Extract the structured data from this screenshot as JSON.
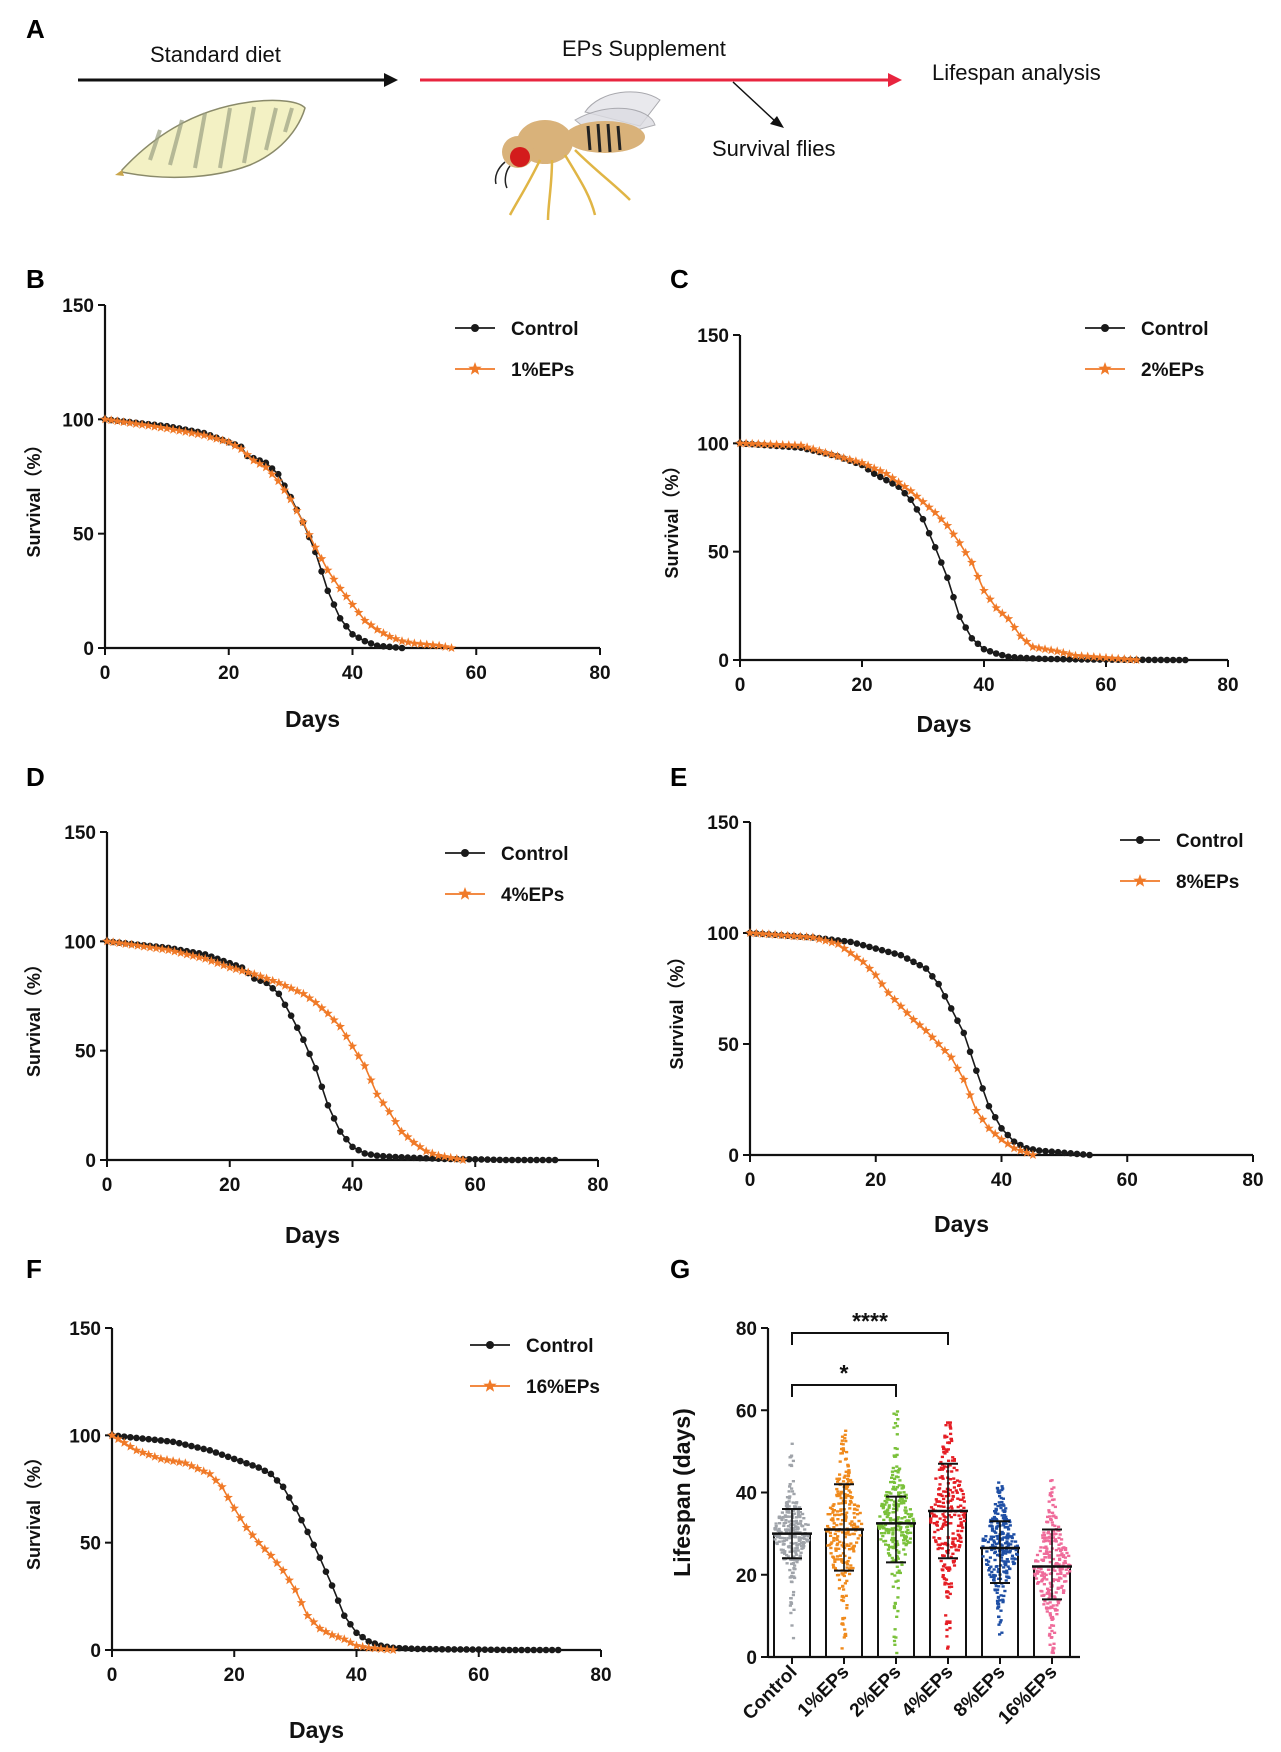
{
  "panel_letters": {
    "A": "A",
    "B": "B",
    "C": "C",
    "D": "D",
    "E": "E",
    "F": "F",
    "G": "G"
  },
  "schematic": {
    "standard_diet": "Standard diet",
    "eps_supplement": "EPs Supplement",
    "lifespan_analysis": "Lifespan analysis",
    "survival_flies": "Survival flies",
    "colors": {
      "diet_arrow": "#111111",
      "eps_arrow": "#e8253f",
      "larva": "#f3f1c4",
      "larva_stripes": "#9aa083",
      "fly_body": "#d9b27a",
      "fly_eye": "#d31c1c",
      "fly_legs": "#e0b545"
    }
  },
  "colors": {
    "control": "#1a1a1a",
    "treatment": "#f07a28"
  },
  "chart_data": [
    {
      "id": "B",
      "type": "line",
      "xlabel": "Days",
      "ylabel": "Survival（%）",
      "xlim": [
        0,
        80
      ],
      "ylim": [
        0,
        150
      ],
      "xticks": [
        "0",
        "20",
        "40",
        "60",
        "80"
      ],
      "yticks": [
        "0",
        "50",
        "100",
        "150"
      ],
      "legend_position": "top-right",
      "series": [
        {
          "name": "Control",
          "marker": "circle",
          "points": [
            [
              0,
              100
            ],
            [
              10,
              97
            ],
            [
              16,
              94
            ],
            [
              20,
              90
            ],
            [
              22,
              88
            ],
            [
              23,
              84
            ],
            [
              26,
              81
            ],
            [
              28,
              76
            ],
            [
              30,
              66
            ],
            [
              32,
              55
            ],
            [
              34,
              42
            ],
            [
              36,
              25
            ],
            [
              38,
              13
            ],
            [
              40,
              6
            ],
            [
              42,
              3
            ],
            [
              44,
              1
            ],
            [
              46,
              0.5
            ],
            [
              48,
              0
            ]
          ]
        },
        {
          "name": "1%EPs",
          "marker": "star",
          "points": [
            [
              0,
              100
            ],
            [
              10,
              96
            ],
            [
              16,
              93
            ],
            [
              20,
              90
            ],
            [
              22,
              87
            ],
            [
              24,
              82
            ],
            [
              26,
              79
            ],
            [
              28,
              73
            ],
            [
              30,
              65
            ],
            [
              32,
              55
            ],
            [
              34,
              44
            ],
            [
              36,
              34
            ],
            [
              38,
              26
            ],
            [
              40,
              19
            ],
            [
              42,
              12
            ],
            [
              44,
              8
            ],
            [
              46,
              5
            ],
            [
              48,
              3
            ],
            [
              50,
              2
            ],
            [
              52,
              1.5
            ],
            [
              54,
              1
            ],
            [
              56,
              0
            ]
          ]
        }
      ]
    },
    {
      "id": "C",
      "type": "line",
      "xlabel": "Days",
      "ylabel": "Survival（%）",
      "xlim": [
        0,
        80
      ],
      "ylim": [
        0,
        150
      ],
      "xticks": [
        "0",
        "20",
        "40",
        "60",
        "80"
      ],
      "yticks": [
        "0",
        "50",
        "100",
        "150"
      ],
      "legend_position": "top-right",
      "series": [
        {
          "name": "Control",
          "marker": "circle",
          "points": [
            [
              0,
              100
            ],
            [
              10,
              98
            ],
            [
              16,
              94
            ],
            [
              20,
              90
            ],
            [
              22,
              86
            ],
            [
              26,
              80
            ],
            [
              28,
              74
            ],
            [
              30,
              65
            ],
            [
              32,
              52
            ],
            [
              34,
              38
            ],
            [
              36,
              20
            ],
            [
              38,
              10
            ],
            [
              40,
              5
            ],
            [
              42,
              3
            ],
            [
              44,
              1.5
            ],
            [
              46,
              1
            ],
            [
              50,
              0.5
            ],
            [
              55,
              0.3
            ],
            [
              60,
              0.2
            ],
            [
              65,
              0.1
            ],
            [
              70,
              0
            ],
            [
              73,
              0
            ]
          ]
        },
        {
          "name": "2%EPs",
          "marker": "star",
          "points": [
            [
              0,
              100
            ],
            [
              10,
              99
            ],
            [
              16,
              94
            ],
            [
              20,
              91
            ],
            [
              24,
              86
            ],
            [
              28,
              78
            ],
            [
              30,
              73
            ],
            [
              32,
              68
            ],
            [
              34,
              62
            ],
            [
              36,
              54
            ],
            [
              38,
              45
            ],
            [
              40,
              32
            ],
            [
              42,
              24
            ],
            [
              44,
              19
            ],
            [
              46,
              11
            ],
            [
              48,
              6
            ],
            [
              50,
              5
            ],
            [
              52,
              4
            ],
            [
              55,
              2
            ],
            [
              60,
              1
            ],
            [
              65,
              0
            ]
          ]
        }
      ]
    },
    {
      "id": "D",
      "type": "line",
      "xlabel": "Days",
      "ylabel": "Survival（%）",
      "xlim": [
        0,
        80
      ],
      "ylim": [
        0,
        150
      ],
      "xticks": [
        "0",
        "20",
        "40",
        "60",
        "80"
      ],
      "yticks": [
        "0",
        "50",
        "100",
        "150"
      ],
      "legend_position": "top-right",
      "series": [
        {
          "name": "Control",
          "marker": "circle",
          "points": [
            [
              0,
              100
            ],
            [
              10,
              97
            ],
            [
              16,
              94
            ],
            [
              20,
              90
            ],
            [
              22,
              88
            ],
            [
              24,
              83
            ],
            [
              26,
              81
            ],
            [
              28,
              76
            ],
            [
              30,
              66
            ],
            [
              32,
              55
            ],
            [
              34,
              42
            ],
            [
              36,
              25
            ],
            [
              38,
              13
            ],
            [
              40,
              6
            ],
            [
              42,
              3
            ],
            [
              44,
              2
            ],
            [
              46,
              1.5
            ],
            [
              50,
              1
            ],
            [
              55,
              0.5
            ],
            [
              60,
              0.3
            ],
            [
              65,
              0
            ],
            [
              73,
              0
            ]
          ]
        },
        {
          "name": "4%EPs",
          "marker": "star",
          "points": [
            [
              0,
              100
            ],
            [
              10,
              96
            ],
            [
              16,
              92
            ],
            [
              20,
              88
            ],
            [
              24,
              85
            ],
            [
              28,
              81
            ],
            [
              32,
              76
            ],
            [
              34,
              72
            ],
            [
              36,
              67
            ],
            [
              38,
              61
            ],
            [
              40,
              52
            ],
            [
              42,
              43
            ],
            [
              44,
              30
            ],
            [
              46,
              22
            ],
            [
              48,
              13
            ],
            [
              50,
              8
            ],
            [
              52,
              4
            ],
            [
              54,
              2
            ],
            [
              56,
              1
            ],
            [
              58,
              0
            ]
          ]
        }
      ]
    },
    {
      "id": "E",
      "type": "line",
      "xlabel": "Days",
      "ylabel": "Survival（%）",
      "xlim": [
        0,
        80
      ],
      "ylim": [
        0,
        150
      ],
      "xticks": [
        "0",
        "20",
        "40",
        "60",
        "80"
      ],
      "yticks": [
        "0",
        "50",
        "100",
        "150"
      ],
      "legend_position": "top-right",
      "series": [
        {
          "name": "Control",
          "marker": "circle",
          "points": [
            [
              0,
              100
            ],
            [
              10,
              98
            ],
            [
              16,
              96
            ],
            [
              20,
              93
            ],
            [
              24,
              90
            ],
            [
              28,
              84
            ],
            [
              30,
              77
            ],
            [
              32,
              66
            ],
            [
              34,
              55
            ],
            [
              36,
              38
            ],
            [
              38,
              22
            ],
            [
              40,
              12
            ],
            [
              42,
              6
            ],
            [
              44,
              3
            ],
            [
              46,
              2
            ],
            [
              48,
              1.5
            ],
            [
              50,
              1
            ],
            [
              52,
              0.5
            ],
            [
              54,
              0
            ]
          ]
        },
        {
          "name": "8%EPs",
          "marker": "star",
          "points": [
            [
              0,
              100
            ],
            [
              10,
              98
            ],
            [
              14,
              95
            ],
            [
              18,
              87
            ],
            [
              20,
              81
            ],
            [
              22,
              73
            ],
            [
              24,
              67
            ],
            [
              26,
              61
            ],
            [
              28,
              56
            ],
            [
              30,
              50
            ],
            [
              32,
              44
            ],
            [
              34,
              34
            ],
            [
              36,
              20
            ],
            [
              38,
              12
            ],
            [
              40,
              7
            ],
            [
              42,
              3
            ],
            [
              44,
              1
            ],
            [
              45,
              0
            ]
          ]
        }
      ]
    },
    {
      "id": "F",
      "type": "line",
      "xlabel": "Days",
      "ylabel": "Survival（%）",
      "xlim": [
        0,
        80
      ],
      "ylim": [
        0,
        150
      ],
      "xticks": [
        "0",
        "20",
        "40",
        "60",
        "80"
      ],
      "yticks": [
        "0",
        "50",
        "100",
        "150"
      ],
      "legend_position": "top-right",
      "series": [
        {
          "name": "Control",
          "marker": "circle",
          "points": [
            [
              0,
              100
            ],
            [
              10,
              97
            ],
            [
              16,
              93
            ],
            [
              20,
              89
            ],
            [
              24,
              85
            ],
            [
              26,
              82
            ],
            [
              28,
              76
            ],
            [
              30,
              66
            ],
            [
              32,
              55
            ],
            [
              34,
              43
            ],
            [
              36,
              30
            ],
            [
              38,
              16
            ],
            [
              40,
              8
            ],
            [
              42,
              4
            ],
            [
              44,
              2
            ],
            [
              46,
              1
            ],
            [
              50,
              0.5
            ],
            [
              55,
              0.3
            ],
            [
              60,
              0.2
            ],
            [
              65,
              0
            ],
            [
              73,
              0
            ]
          ]
        },
        {
          "name": "16%EPs",
          "marker": "star",
          "points": [
            [
              0,
              100
            ],
            [
              4,
              93
            ],
            [
              8,
              89
            ],
            [
              12,
              87
            ],
            [
              16,
              82
            ],
            [
              18,
              76
            ],
            [
              20,
              66
            ],
            [
              22,
              57
            ],
            [
              24,
              50
            ],
            [
              26,
              44
            ],
            [
              28,
              37
            ],
            [
              30,
              28
            ],
            [
              32,
              16
            ],
            [
              34,
              10
            ],
            [
              36,
              7
            ],
            [
              38,
              5
            ],
            [
              40,
              2
            ],
            [
              42,
              1
            ],
            [
              44,
              0.5
            ],
            [
              46,
              0
            ]
          ]
        }
      ]
    },
    {
      "id": "G",
      "type": "bar",
      "ylabel": "Lifespan (days)",
      "ylim": [
        0,
        80
      ],
      "yticks": [
        "0",
        "20",
        "40",
        "60",
        "80"
      ],
      "categories": [
        "Control",
        "1%EPs",
        "2%EPs",
        "4%EPs",
        "8%EPs",
        "16%EPs"
      ],
      "means": [
        30,
        31,
        32.5,
        35.5,
        26.5,
        22
      ],
      "sd_upper": [
        36,
        42,
        39,
        47,
        33,
        31
      ],
      "sd_lower": [
        24,
        21,
        23,
        24,
        18,
        14
      ],
      "max_values": [
        52,
        55,
        60,
        57,
        44,
        43
      ],
      "min_values": [
        2,
        1,
        0,
        1,
        3,
        1
      ],
      "dot_colors": [
        "#a0a4aa",
        "#f08a1c",
        "#7ac13a",
        "#e51e25",
        "#1f4fa5",
        "#ef6b9a"
      ],
      "significance": [
        {
          "pair": [
            "Control",
            "2%EPs"
          ],
          "label": "*"
        },
        {
          "pair": [
            "Control",
            "4%EPs"
          ],
          "label": "****"
        }
      ]
    }
  ]
}
